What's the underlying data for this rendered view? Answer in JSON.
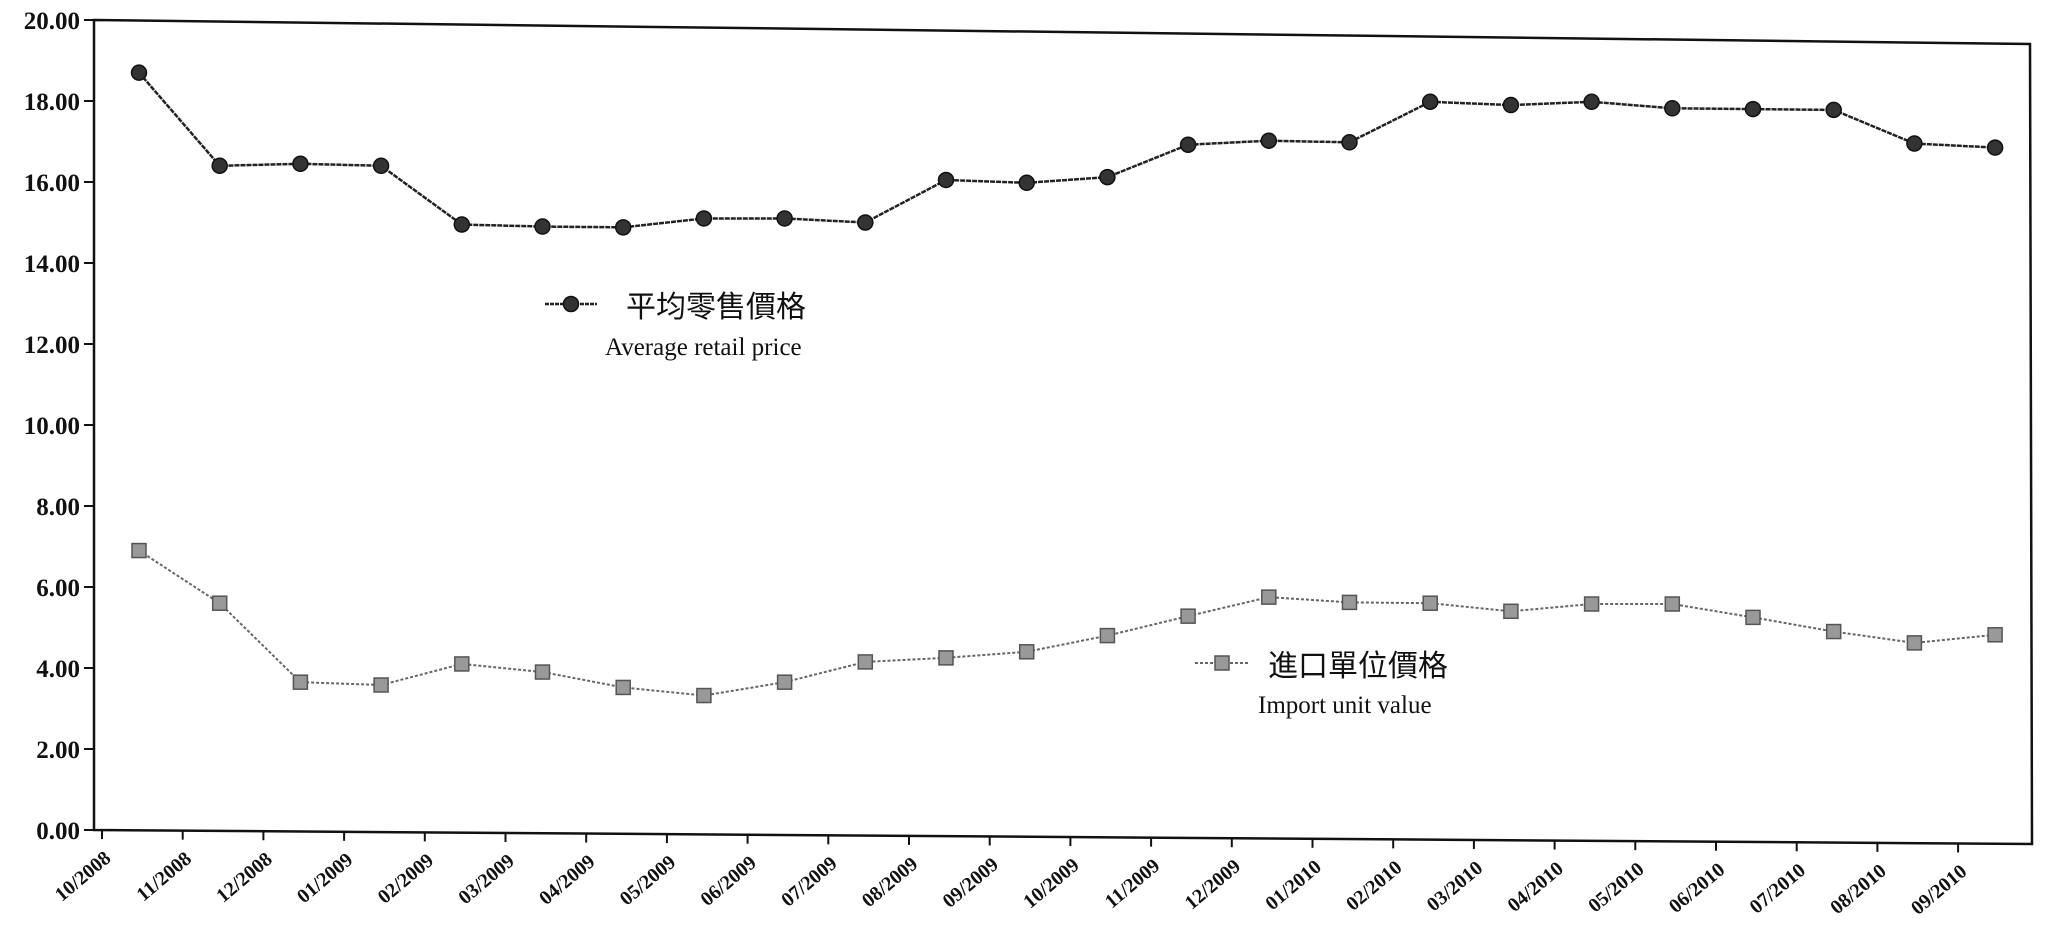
{
  "chart_data": {
    "type": "line",
    "title": "",
    "xlabel": "",
    "ylabel": "",
    "ylim": [
      0,
      20
    ],
    "yticks": [
      "0.00",
      "2.00",
      "4.00",
      "6.00",
      "8.00",
      "10.00",
      "12.00",
      "14.00",
      "16.00",
      "18.00",
      "20.00"
    ],
    "grid": false,
    "categories": [
      "10/2008",
      "11/2008",
      "12/2008",
      "01/2009",
      "02/2009",
      "03/2009",
      "04/2009",
      "05/2009",
      "06/2009",
      "07/2009",
      "08/2009",
      "09/2009",
      "10/2009",
      "11/2009",
      "12/2009",
      "01/2010",
      "02/2010",
      "03/2010",
      "04/2010",
      "05/2010",
      "06/2010",
      "07/2010",
      "08/2010",
      "09/2010"
    ],
    "series": [
      {
        "name": "平均零售價格",
        "name_en": "Average retail price",
        "color": "#222222",
        "marker": "circle",
        "values": [
          18.7,
          16.4,
          16.45,
          16.4,
          14.95,
          14.9,
          14.88,
          15.1,
          15.1,
          15.0,
          16.05,
          15.98,
          16.12,
          16.92,
          17.02,
          16.98,
          17.98,
          17.9,
          17.98,
          17.82,
          17.8,
          17.78,
          16.95,
          16.85
        ]
      },
      {
        "name": "進口單位價格",
        "name_en": "Import unit value",
        "color": "#666666",
        "marker": "square",
        "values": [
          6.9,
          5.6,
          3.65,
          3.58,
          4.1,
          3.9,
          3.52,
          3.32,
          3.65,
          4.15,
          4.25,
          4.4,
          4.8,
          5.28,
          5.75,
          5.62,
          5.6,
          5.4,
          5.58,
          5.58,
          5.25,
          4.9,
          4.62,
          4.82
        ]
      }
    ]
  }
}
